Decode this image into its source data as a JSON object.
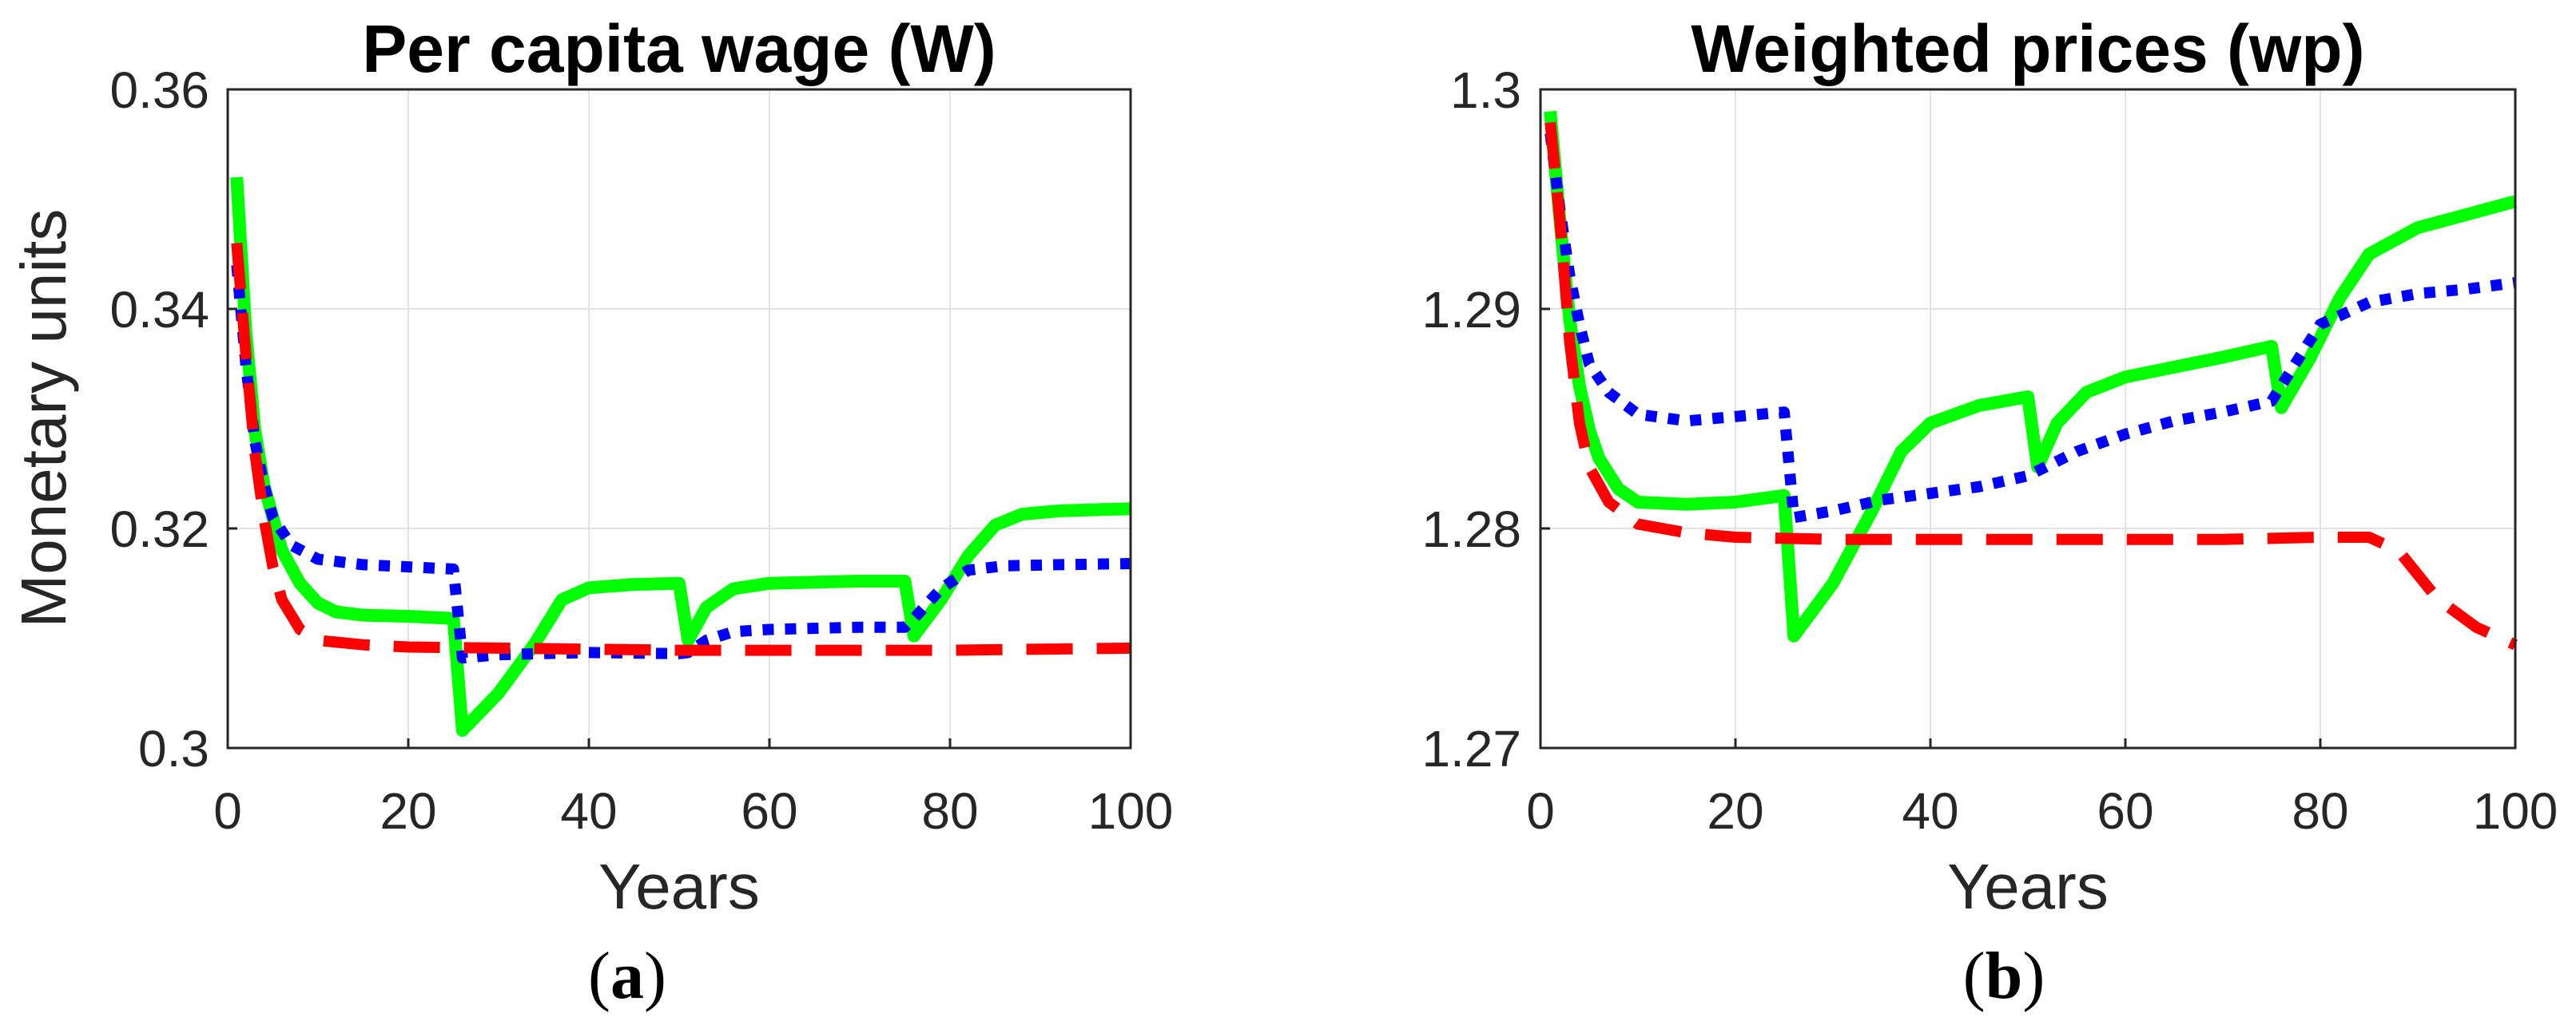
{
  "chart_data": [
    {
      "type": "line",
      "title": "Per capita wage (W)",
      "xlabel": "Years",
      "ylabel": "Monetary units",
      "caption_letter": "a",
      "xlim": [
        0,
        100
      ],
      "ylim": [
        0.3,
        0.36
      ],
      "xticks": [
        "0",
        "20",
        "40",
        "60",
        "80",
        "100"
      ],
      "yticks": [
        "0.3",
        "0.32",
        "0.34",
        "0.36"
      ],
      "grid": true,
      "series": [
        {
          "name": "scenario-green",
          "color": "#00ff00",
          "style": "solid",
          "points": [
            [
              1,
              0.352
            ],
            [
              2,
              0.338
            ],
            [
              3,
              0.329
            ],
            [
              4,
              0.324
            ],
            [
              5,
              0.321
            ],
            [
              6,
              0.318
            ],
            [
              8,
              0.315
            ],
            [
              10,
              0.3132
            ],
            [
              12,
              0.3124
            ],
            [
              15,
              0.3121
            ],
            [
              20,
              0.312
            ],
            [
              25,
              0.3118
            ],
            [
              26,
              0.3016
            ],
            [
              30,
              0.305
            ],
            [
              34,
              0.3095
            ],
            [
              37,
              0.3135
            ],
            [
              40,
              0.3146
            ],
            [
              45,
              0.3149
            ],
            [
              50,
              0.315
            ],
            [
              51,
              0.3098
            ],
            [
              53,
              0.3128
            ],
            [
              56,
              0.3145
            ],
            [
              60,
              0.315
            ],
            [
              70,
              0.3152
            ],
            [
              75,
              0.3152
            ],
            [
              76,
              0.3102
            ],
            [
              79,
              0.3135
            ],
            [
              82,
              0.3175
            ],
            [
              85,
              0.3203
            ],
            [
              88,
              0.3213
            ],
            [
              92,
              0.3216
            ],
            [
              100,
              0.3218
            ]
          ]
        },
        {
          "name": "scenario-blue",
          "color": "#0000ff",
          "style": "dotted",
          "points": [
            [
              1,
              0.344
            ],
            [
              2,
              0.335
            ],
            [
              3,
              0.328
            ],
            [
              4,
              0.324
            ],
            [
              5,
              0.321
            ],
            [
              7,
              0.3185
            ],
            [
              10,
              0.3172
            ],
            [
              15,
              0.3167
            ],
            [
              20,
              0.3165
            ],
            [
              25,
              0.3163
            ],
            [
              26,
              0.3082
            ],
            [
              30,
              0.3085
            ],
            [
              40,
              0.3087
            ],
            [
              50,
              0.3086
            ],
            [
              51,
              0.3087
            ],
            [
              53,
              0.3098
            ],
            [
              56,
              0.3106
            ],
            [
              60,
              0.3108
            ],
            [
              70,
              0.311
            ],
            [
              75,
              0.311
            ],
            [
              76,
              0.3118
            ],
            [
              79,
              0.3145
            ],
            [
              82,
              0.3162
            ],
            [
              86,
              0.3166
            ],
            [
              92,
              0.3167
            ],
            [
              100,
              0.3168
            ]
          ]
        },
        {
          "name": "scenario-red",
          "color": "#ff0000",
          "style": "dashed",
          "points": [
            [
              1,
              0.346
            ],
            [
              2,
              0.336
            ],
            [
              3,
              0.327
            ],
            [
              4,
              0.321
            ],
            [
              5,
              0.3165
            ],
            [
              6,
              0.3135
            ],
            [
              8,
              0.3108
            ],
            [
              10,
              0.3098
            ],
            [
              15,
              0.3094
            ],
            [
              20,
              0.3092
            ],
            [
              30,
              0.3091
            ],
            [
              40,
              0.309
            ],
            [
              50,
              0.3089
            ],
            [
              60,
              0.3089
            ],
            [
              70,
              0.3089
            ],
            [
              80,
              0.3089
            ],
            [
              90,
              0.309
            ],
            [
              100,
              0.3091
            ]
          ]
        }
      ]
    },
    {
      "type": "line",
      "title": "Weighted prices (wp)",
      "xlabel": "Years",
      "ylabel": "",
      "caption_letter": "b",
      "xlim": [
        0,
        100
      ],
      "ylim": [
        1.27,
        1.3
      ],
      "xticks": [
        "0",
        "20",
        "40",
        "60",
        "80",
        "100"
      ],
      "yticks": [
        "1.27",
        "1.28",
        "1.29",
        "1.3"
      ],
      "grid": true,
      "series": [
        {
          "name": "scenario-green",
          "color": "#00ff00",
          "style": "solid",
          "points": [
            [
              1,
              1.299
            ],
            [
              2,
              1.294
            ],
            [
              3,
              1.2895
            ],
            [
              4,
              1.2865
            ],
            [
              5,
              1.2845
            ],
            [
              6,
              1.2832
            ],
            [
              8,
              1.2818
            ],
            [
              10,
              1.2812
            ],
            [
              15,
              1.2811
            ],
            [
              20,
              1.2812
            ],
            [
              25,
              1.2815
            ],
            [
              26,
              1.2751
            ],
            [
              30,
              1.2775
            ],
            [
              34,
              1.2808
            ],
            [
              37,
              1.2835
            ],
            [
              40,
              1.2848
            ],
            [
              45,
              1.2856
            ],
            [
              50,
              1.286
            ],
            [
              51,
              1.2828
            ],
            [
              53,
              1.2848
            ],
            [
              56,
              1.2862
            ],
            [
              60,
              1.2869
            ],
            [
              70,
              1.2878
            ],
            [
              75,
              1.2883
            ],
            [
              76,
              1.2855
            ],
            [
              79,
              1.2878
            ],
            [
              82,
              1.2905
            ],
            [
              85,
              1.2925
            ],
            [
              90,
              1.2937
            ],
            [
              95,
              1.2943
            ],
            [
              100,
              1.2949
            ]
          ]
        },
        {
          "name": "scenario-blue",
          "color": "#0000ff",
          "style": "dotted",
          "points": [
            [
              1,
              1.298
            ],
            [
              2,
              1.2945
            ],
            [
              3,
              1.2915
            ],
            [
              4,
              1.2893
            ],
            [
              5,
              1.2875
            ],
            [
              7,
              1.2862
            ],
            [
              10,
              1.2852
            ],
            [
              15,
              1.2849
            ],
            [
              20,
              1.2851
            ],
            [
              25,
              1.2853
            ],
            [
              26,
              1.2805
            ],
            [
              30,
              1.2808
            ],
            [
              35,
              1.2813
            ],
            [
              40,
              1.2816
            ],
            [
              45,
              1.2819
            ],
            [
              50,
              1.2824
            ],
            [
              55,
              1.2835
            ],
            [
              60,
              1.2843
            ],
            [
              65,
              1.2849
            ],
            [
              70,
              1.2853
            ],
            [
              75,
              1.2858
            ],
            [
              80,
              1.2893
            ],
            [
              85,
              1.2903
            ],
            [
              90,
              1.2907
            ],
            [
              95,
              1.2909
            ],
            [
              100,
              1.2912
            ]
          ]
        },
        {
          "name": "scenario-red",
          "color": "#ff0000",
          "style": "dashed",
          "points": [
            [
              1,
              1.2985
            ],
            [
              2,
              1.294
            ],
            [
              3,
              1.2885
            ],
            [
              4,
              1.2848
            ],
            [
              5,
              1.2828
            ],
            [
              7,
              1.2812
            ],
            [
              10,
              1.2802
            ],
            [
              15,
              1.2798
            ],
            [
              20,
              1.2796
            ],
            [
              30,
              1.2795
            ],
            [
              40,
              1.2795
            ],
            [
              50,
              1.2795
            ],
            [
              60,
              1.2795
            ],
            [
              70,
              1.2795
            ],
            [
              80,
              1.2796
            ],
            [
              85,
              1.2796
            ],
            [
              88,
              1.279
            ],
            [
              92,
              1.2768
            ],
            [
              96,
              1.2755
            ],
            [
              100,
              1.2747
            ]
          ]
        }
      ]
    }
  ]
}
